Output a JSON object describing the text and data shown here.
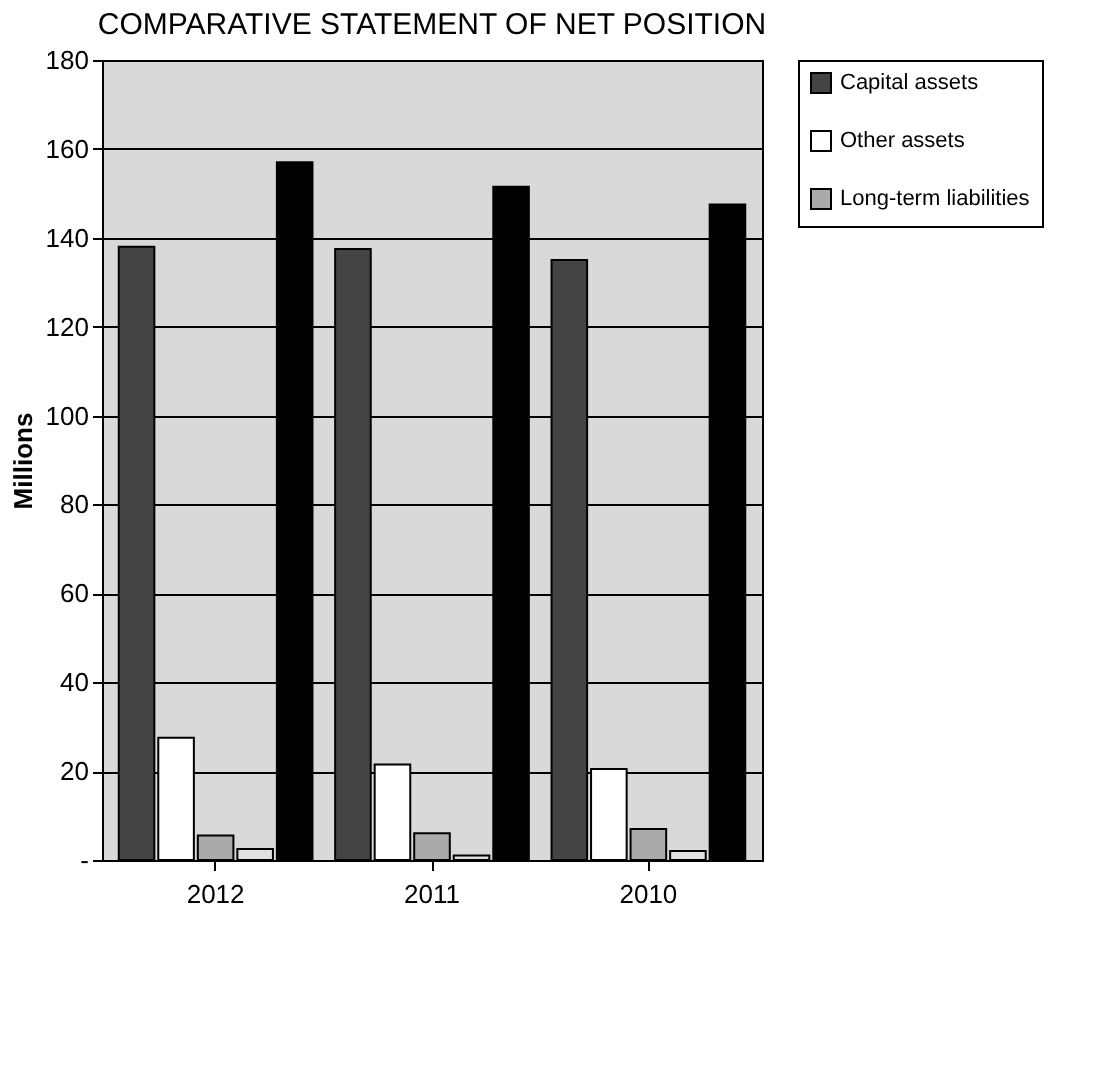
{
  "chart_data": {
    "type": "bar",
    "title": "COMPARATIVE STATEMENT OF NET POSITION",
    "ylabel": "Millions",
    "categories": [
      "2012",
      "2011",
      "2010"
    ],
    "series": [
      {
        "name": "Capital assets",
        "color": "#444444",
        "values": [
          138,
          137.5,
          135
        ]
      },
      {
        "name": "Other assets",
        "color": "#ffffff",
        "values": [
          27.5,
          21.5,
          20.5
        ]
      },
      {
        "name": "Long-term liabilities",
        "color": "#aaaaaa",
        "values": [
          5.5,
          6,
          7
        ]
      },
      {
        "color": "#e0e0e0",
        "values": [
          2.5,
          1,
          2
        ]
      },
      {
        "color": "#000000",
        "values": [
          157,
          151.5,
          147.5
        ]
      }
    ],
    "ylim": [
      0,
      180
    ],
    "yticks": [
      {
        "value": 0,
        "label": "-"
      },
      20,
      40,
      60,
      80,
      100,
      120,
      140,
      160,
      180
    ],
    "grid": "y",
    "legend": "right"
  }
}
